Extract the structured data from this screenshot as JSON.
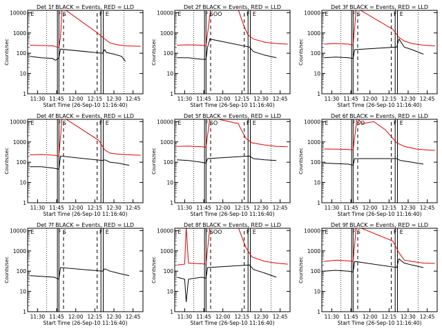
{
  "colors": {
    "events": "#000000",
    "lld": "#e00000"
  },
  "chart_data": [
    {
      "type": "line",
      "title": "Det 1f BLACK = Events, RED = LLD",
      "xlabel": "Start Time (26-Sep-10 11:16:40)",
      "ylabel": "Counts/sec",
      "xticks": [
        "11:30",
        "11:45",
        "12:00",
        "12:15",
        "12:30",
        "12:45"
      ],
      "yticks": [
        "1",
        "10",
        "100",
        "1000",
        "10000"
      ],
      "ylim": [
        1,
        13000
      ],
      "yscale": "log",
      "markers": [
        "E",
        "F",
        "S",
        "F",
        "E"
      ],
      "series": [
        {
          "name": "Events",
          "x": [
            11.4,
            11.55,
            11.7,
            11.73,
            11.76,
            11.78,
            11.8,
            12.35,
            12.38,
            12.4,
            12.5,
            12.6,
            12.65
          ],
          "y": [
            70,
            60,
            55,
            45,
            50,
            60,
            160,
            100,
            150,
            110,
            90,
            70,
            40
          ]
        },
        {
          "name": "LLD",
          "x": [
            11.4,
            11.55,
            11.7,
            11.76,
            11.78,
            11.8,
            11.82,
            11.85,
            12.3,
            12.38,
            12.45,
            12.55,
            12.65,
            12.85
          ],
          "y": [
            250,
            240,
            230,
            200,
            190,
            600,
            15000,
            15000,
            900,
            500,
            320,
            260,
            230,
            220
          ]
        }
      ]
    },
    {
      "type": "line",
      "title": "Det 2f BLACK = Events, RED = LLD",
      "xlabel": "Start Time (26-Sep-10 11:16:40)",
      "ylabel": "Counts/sec",
      "xticks": [
        "11:30",
        "11:45",
        "12:00",
        "12:15",
        "12:30",
        "12:45"
      ],
      "yticks": [
        "1",
        "10",
        "100",
        "1000",
        "10000"
      ],
      "ylim": [
        1,
        13000
      ],
      "yscale": "log",
      "markers": [
        "E",
        "F",
        "SOO",
        "F",
        "E"
      ],
      "series": [
        {
          "name": "Events",
          "x": [
            11.4,
            11.55,
            11.72,
            11.78,
            11.8,
            11.83,
            12.35,
            12.4,
            12.55,
            12.7
          ],
          "y": [
            60,
            60,
            50,
            50,
            200,
            500,
            200,
            120,
            80,
            60
          ]
        },
        {
          "name": "LLD",
          "x": [
            11.4,
            11.55,
            11.72,
            11.78,
            11.84,
            11.87,
            12.2,
            12.28,
            12.33,
            12.4,
            12.55,
            12.7,
            12.85
          ],
          "y": [
            250,
            260,
            250,
            230,
            15000,
            15000,
            15000,
            2000,
            800,
            500,
            350,
            300,
            280
          ]
        }
      ]
    },
    {
      "type": "line",
      "title": "Det 3f BLACK = Events, RED = LLD",
      "xlabel": "Start Time (26-Sep-10 11:16:40)",
      "ylabel": "Counts/sec",
      "xticks": [
        "11:30",
        "11:45",
        "12:00",
        "12:15",
        "12:30",
        "12:45"
      ],
      "yticks": [
        "1",
        "10",
        "100",
        "1000",
        "10000"
      ],
      "ylim": [
        1,
        13000
      ],
      "yscale": "log",
      "markers": [
        "E",
        "F",
        "S",
        "F",
        "E"
      ],
      "series": [
        {
          "name": "Events",
          "x": [
            11.4,
            11.55,
            11.72,
            11.78,
            11.8,
            12.35,
            12.38,
            12.45,
            12.55,
            12.7
          ],
          "y": [
            60,
            65,
            60,
            55,
            150,
            200,
            500,
            200,
            150,
            90
          ]
        },
        {
          "name": "LLD",
          "x": [
            11.4,
            11.55,
            11.72,
            11.78,
            11.82,
            11.85,
            12.3,
            12.38,
            12.45,
            12.55,
            12.7,
            12.85
          ],
          "y": [
            280,
            300,
            280,
            250,
            15000,
            15000,
            1500,
            600,
            400,
            300,
            250,
            230
          ]
        }
      ]
    },
    {
      "type": "line",
      "title": "Det 4f BLACK = Events, RED = LLD",
      "xlabel": "Start Time (26-Sep-10 11:16:40)",
      "ylabel": "Counts/sec",
      "xticks": [
        "11:30",
        "11:45",
        "12:00",
        "12:15",
        "12:30",
        "12:45"
      ],
      "yticks": [
        "1",
        "10",
        "100",
        "1000",
        "10000"
      ],
      "ylim": [
        1,
        13000
      ],
      "yscale": "log",
      "markers": [
        "E",
        "F",
        "S",
        "F",
        "E"
      ],
      "series": [
        {
          "name": "Events",
          "x": [
            11.4,
            11.55,
            11.72,
            11.78,
            11.8,
            12.35,
            12.38,
            12.45,
            12.55,
            12.7
          ],
          "y": [
            60,
            60,
            50,
            45,
            200,
            120,
            130,
            100,
            90,
            70
          ]
        },
        {
          "name": "LLD",
          "x": [
            11.4,
            11.55,
            11.72,
            11.78,
            11.82,
            11.85,
            12.3,
            12.38,
            12.45,
            12.55,
            12.7,
            12.85
          ],
          "y": [
            230,
            240,
            220,
            200,
            15000,
            15000,
            1200,
            400,
            280,
            250,
            230,
            220
          ]
        }
      ]
    },
    {
      "type": "line",
      "title": "Det 5f BLACK = Events, RED = LLD",
      "xlabel": "Start Time (26-Sep-10 11:16:40)",
      "ylabel": "Counts/sec",
      "xticks": [
        "11:30",
        "11:45",
        "12:00",
        "12:15",
        "12:30",
        "12:45"
      ],
      "yticks": [
        "1",
        "10",
        "100",
        "1000",
        "10000"
      ],
      "ylim": [
        1,
        13000
      ],
      "yscale": "log",
      "markers": [
        "E",
        "F",
        "SO",
        "F",
        "E"
      ],
      "series": [
        {
          "name": "Events",
          "x": [
            11.4,
            11.55,
            11.72,
            11.78,
            11.8,
            12.35,
            12.4,
            12.55,
            12.7
          ],
          "y": [
            130,
            120,
            100,
            90,
            150,
            200,
            150,
            130,
            120
          ]
        },
        {
          "name": "LLD",
          "x": [
            11.4,
            11.55,
            11.72,
            11.78,
            11.83,
            11.87,
            12.2,
            12.3,
            12.38,
            12.55,
            12.7,
            12.85
          ],
          "y": [
            600,
            620,
            580,
            550,
            15000,
            15000,
            8000,
            1500,
            900,
            700,
            600,
            580
          ]
        }
      ]
    },
    {
      "type": "line",
      "title": "Det 6f BLACK = Events, RED = LLD",
      "xlabel": "Start Time (26-Sep-10 11:16:40)",
      "ylabel": "Counts/sec",
      "xticks": [
        "11:30",
        "11:45",
        "12:00",
        "12:15",
        "12:30",
        "12:45"
      ],
      "yticks": [
        "1",
        "10",
        "100",
        "1000",
        "10000"
      ],
      "ylim": [
        1,
        13000
      ],
      "yscale": "log",
      "markers": [
        "E",
        "F",
        "SO",
        "F",
        "E"
      ],
      "series": [
        {
          "name": "Events",
          "x": [
            11.4,
            11.55,
            11.72,
            11.78,
            11.8,
            12.35,
            12.4,
            12.55,
            12.7
          ],
          "y": [
            90,
            85,
            80,
            70,
            150,
            150,
            120,
            100,
            80
          ]
        },
        {
          "name": "LLD",
          "x": [
            11.4,
            11.55,
            11.72,
            11.78,
            11.83,
            11.9,
            12.05,
            12.2,
            12.35,
            12.45,
            12.6,
            12.75,
            12.85
          ],
          "y": [
            450,
            440,
            420,
            400,
            15000,
            8000,
            10000,
            4000,
            900,
            600,
            450,
            400,
            380
          ]
        }
      ]
    },
    {
      "type": "line",
      "title": "Det 7f BLACK = Events, RED = LLD",
      "xlabel": "Start Time (26-Sep-10 11:16:40)",
      "ylabel": "Counts/sec",
      "xticks": [
        "11:30",
        "11:45",
        "12:00",
        "12:15",
        "12:30",
        "12:45"
      ],
      "yticks": [
        "1",
        "10",
        "100",
        "1000",
        "10000"
      ],
      "ylim": [
        1,
        13000
      ],
      "yscale": "log",
      "markers": [
        "E",
        "F",
        "S",
        "F",
        "E"
      ],
      "series": [
        {
          "name": "Events",
          "x": [
            11.4,
            11.55,
            11.72,
            11.78,
            11.8,
            12.35,
            12.38,
            12.45,
            12.55,
            12.7
          ],
          "y": [
            60,
            55,
            50,
            40,
            150,
            100,
            130,
            100,
            80,
            60
          ]
        }
      ]
    },
    {
      "type": "line",
      "title": "Det 8f BLACK = Events, RED = LLD",
      "xlabel": "Start Time (26-Sep-10 11:16:40)",
      "ylabel": "Counts/sec",
      "xticks": [
        "11:30",
        "11:45",
        "12:00",
        "12:15",
        "12:30",
        "12:45"
      ],
      "yticks": [
        "1",
        "10",
        "100",
        "1000",
        "10000"
      ],
      "ylim": [
        1,
        13000
      ],
      "yscale": "log",
      "markers": [
        "E",
        "F",
        "SOO",
        "F",
        "E"
      ],
      "series": [
        {
          "name": "Events",
          "x": [
            11.4,
            11.5,
            11.52,
            11.55,
            11.72,
            11.78,
            11.8,
            12.35,
            12.4,
            12.55,
            12.7
          ],
          "y": [
            50,
            40,
            3,
            40,
            50,
            45,
            150,
            200,
            120,
            80,
            50
          ]
        },
        {
          "name": "LLD",
          "x": [
            11.4,
            11.5,
            11.52,
            11.55,
            11.72,
            11.78,
            11.83,
            11.87,
            12.2,
            12.3,
            12.38,
            12.55,
            12.7,
            12.85
          ],
          "y": [
            200,
            220,
            15000,
            250,
            230,
            220,
            15000,
            15000,
            15000,
            1500,
            500,
            300,
            250,
            220
          ]
        }
      ]
    },
    {
      "type": "line",
      "title": "Det 9f BLACK = Events, RED = LLD",
      "xlabel": "Start Time (26-Sep-10 11:16:40)",
      "ylabel": "Counts/sec",
      "xticks": [
        "11:30",
        "11:45",
        "12:00",
        "12:15",
        "12:30",
        "12:45"
      ],
      "yticks": [
        "1",
        "10",
        "100",
        "1000",
        "10000"
      ],
      "ylim": [
        1,
        13000
      ],
      "yscale": "log",
      "markers": [
        "E",
        "F",
        "S",
        "F",
        "E"
      ],
      "series": [
        {
          "name": "Events",
          "x": [
            11.4,
            11.55,
            11.72,
            11.78,
            11.8,
            12.35,
            12.38,
            12.45,
            12.55,
            12.7
          ],
          "y": [
            100,
            110,
            100,
            90,
            300,
            150,
            400,
            250,
            200,
            150
          ]
        },
        {
          "name": "LLD",
          "x": [
            11.4,
            11.55,
            11.72,
            11.78,
            11.82,
            11.85,
            12.3,
            12.38,
            12.45,
            12.55,
            12.7,
            12.85
          ],
          "y": [
            300,
            350,
            320,
            300,
            15000,
            15000,
            3000,
            800,
            350,
            300,
            250,
            240
          ]
        }
      ]
    }
  ]
}
